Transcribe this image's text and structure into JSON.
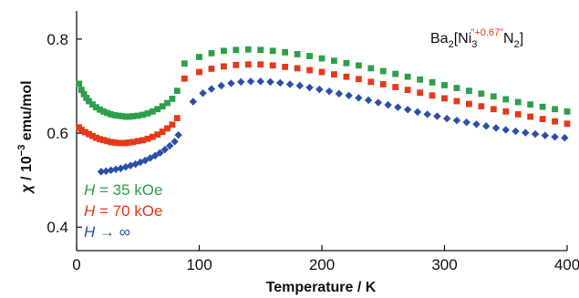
{
  "chart_data": {
    "type": "scatter",
    "xlabel": "Temperature / K",
    "ylabel_parts": {
      "chi": "χ",
      "slash": " / 10",
      "exp": "−3",
      "unit": " emu/mol"
    },
    "xlim": [
      0,
      400
    ],
    "ylim": [
      0.35,
      0.86
    ],
    "xticks": [
      0,
      100,
      200,
      300,
      400
    ],
    "yticks": [
      0.4,
      0.6,
      0.8
    ],
    "xtick_labels": [
      "0",
      "100",
      "200",
      "300",
      "400"
    ],
    "ytick_labels": [
      "0.4",
      "0.6",
      "0.8"
    ],
    "grid": false,
    "formula": {
      "base": "Ba",
      "sub1": "2",
      "open": "[Ni",
      "sub2": "3",
      "sup": "\"+0.67\"",
      "mid": "N",
      "sub3": "2",
      "close": "]"
    },
    "series": [
      {
        "name": "H = 35 kOe",
        "label_parts": {
          "var": "H",
          "rest": " = 35 kOe"
        },
        "color": "#2ca049",
        "marker": "square",
        "points": [
          [
            2,
            0.705
          ],
          [
            4,
            0.692
          ],
          [
            6,
            0.683
          ],
          [
            8,
            0.675
          ],
          [
            10,
            0.668
          ],
          [
            13,
            0.661
          ],
          [
            16,
            0.655
          ],
          [
            19,
            0.65
          ],
          [
            22,
            0.646
          ],
          [
            25,
            0.643
          ],
          [
            28,
            0.64
          ],
          [
            31,
            0.638
          ],
          [
            34,
            0.637
          ],
          [
            37,
            0.636
          ],
          [
            40,
            0.635
          ],
          [
            43,
            0.635
          ],
          [
            46,
            0.636
          ],
          [
            50,
            0.637
          ],
          [
            54,
            0.639
          ],
          [
            58,
            0.642
          ],
          [
            62,
            0.646
          ],
          [
            66,
            0.651
          ],
          [
            70,
            0.657
          ],
          [
            74,
            0.664
          ],
          [
            78,
            0.673
          ],
          [
            82,
            0.69
          ],
          [
            88,
            0.748
          ],
          [
            100,
            0.762
          ],
          [
            110,
            0.77
          ],
          [
            120,
            0.775
          ],
          [
            130,
            0.777
          ],
          [
            140,
            0.778
          ],
          [
            150,
            0.777
          ],
          [
            160,
            0.775
          ],
          [
            170,
            0.772
          ],
          [
            180,
            0.768
          ],
          [
            190,
            0.764
          ],
          [
            200,
            0.759
          ],
          [
            210,
            0.754
          ],
          [
            220,
            0.749
          ],
          [
            230,
            0.744
          ],
          [
            240,
            0.738
          ],
          [
            250,
            0.732
          ],
          [
            260,
            0.726
          ],
          [
            270,
            0.72
          ],
          [
            280,
            0.714
          ],
          [
            290,
            0.708
          ],
          [
            300,
            0.702
          ],
          [
            310,
            0.696
          ],
          [
            320,
            0.69
          ],
          [
            330,
            0.684
          ],
          [
            340,
            0.678
          ],
          [
            350,
            0.672
          ],
          [
            360,
            0.666
          ],
          [
            370,
            0.661
          ],
          [
            380,
            0.656
          ],
          [
            390,
            0.651
          ],
          [
            400,
            0.646
          ]
        ]
      },
      {
        "name": "H = 70 kOe",
        "label_parts": {
          "var": "H",
          "rest": " = 70 kOe"
        },
        "color": "#e5391c",
        "marker": "square",
        "points": [
          [
            2,
            0.612
          ],
          [
            4,
            0.607
          ],
          [
            7,
            0.602
          ],
          [
            10,
            0.598
          ],
          [
            13,
            0.594
          ],
          [
            16,
            0.59
          ],
          [
            19,
            0.587
          ],
          [
            22,
            0.585
          ],
          [
            25,
            0.583
          ],
          [
            28,
            0.581
          ],
          [
            31,
            0.58
          ],
          [
            34,
            0.579
          ],
          [
            37,
            0.579
          ],
          [
            40,
            0.579
          ],
          [
            43,
            0.58
          ],
          [
            46,
            0.581
          ],
          [
            50,
            0.583
          ],
          [
            54,
            0.585
          ],
          [
            58,
            0.588
          ],
          [
            62,
            0.592
          ],
          [
            66,
            0.597
          ],
          [
            70,
            0.603
          ],
          [
            74,
            0.61
          ],
          [
            78,
            0.618
          ],
          [
            82,
            0.632
          ],
          [
            88,
            0.716
          ],
          [
            100,
            0.73
          ],
          [
            110,
            0.737
          ],
          [
            120,
            0.742
          ],
          [
            130,
            0.745
          ],
          [
            140,
            0.746
          ],
          [
            150,
            0.746
          ],
          [
            160,
            0.744
          ],
          [
            170,
            0.741
          ],
          [
            180,
            0.738
          ],
          [
            190,
            0.734
          ],
          [
            200,
            0.73
          ],
          [
            210,
            0.725
          ],
          [
            220,
            0.72
          ],
          [
            230,
            0.715
          ],
          [
            240,
            0.709
          ],
          [
            250,
            0.704
          ],
          [
            260,
            0.698
          ],
          [
            270,
            0.692
          ],
          [
            280,
            0.686
          ],
          [
            290,
            0.68
          ],
          [
            300,
            0.674
          ],
          [
            310,
            0.668
          ],
          [
            320,
            0.662
          ],
          [
            330,
            0.657
          ],
          [
            340,
            0.651
          ],
          [
            350,
            0.646
          ],
          [
            360,
            0.64
          ],
          [
            370,
            0.635
          ],
          [
            380,
            0.63
          ],
          [
            390,
            0.625
          ],
          [
            400,
            0.62
          ]
        ]
      },
      {
        "name": "H → ∞",
        "label_parts": {
          "var": "H",
          "rest": " → ∞"
        },
        "color": "#2b4fa8",
        "marker": "diamond",
        "points": [
          [
            20,
            0.518
          ],
          [
            24,
            0.519
          ],
          [
            28,
            0.521
          ],
          [
            32,
            0.523
          ],
          [
            36,
            0.525
          ],
          [
            40,
            0.528
          ],
          [
            44,
            0.531
          ],
          [
            48,
            0.534
          ],
          [
            52,
            0.538
          ],
          [
            56,
            0.542
          ],
          [
            60,
            0.547
          ],
          [
            64,
            0.552
          ],
          [
            68,
            0.558
          ],
          [
            72,
            0.565
          ],
          [
            76,
            0.573
          ],
          [
            80,
            0.582
          ],
          [
            83,
            0.596
          ],
          [
            95,
            0.667
          ],
          [
            103,
            0.685
          ],
          [
            110,
            0.694
          ],
          [
            118,
            0.701
          ],
          [
            126,
            0.706
          ],
          [
            134,
            0.709
          ],
          [
            142,
            0.71
          ],
          [
            150,
            0.71
          ],
          [
            158,
            0.709
          ],
          [
            166,
            0.707
          ],
          [
            174,
            0.704
          ],
          [
            182,
            0.701
          ],
          [
            190,
            0.697
          ],
          [
            198,
            0.693
          ],
          [
            206,
            0.689
          ],
          [
            214,
            0.684
          ],
          [
            222,
            0.68
          ],
          [
            230,
            0.675
          ],
          [
            238,
            0.67
          ],
          [
            246,
            0.665
          ],
          [
            254,
            0.66
          ],
          [
            262,
            0.655
          ],
          [
            270,
            0.65
          ],
          [
            278,
            0.645
          ],
          [
            286,
            0.64
          ],
          [
            294,
            0.636
          ],
          [
            302,
            0.631
          ],
          [
            310,
            0.627
          ],
          [
            318,
            0.623
          ],
          [
            326,
            0.619
          ],
          [
            334,
            0.615
          ],
          [
            342,
            0.611
          ],
          [
            350,
            0.607
          ],
          [
            358,
            0.604
          ],
          [
            366,
            0.601
          ],
          [
            374,
            0.598
          ],
          [
            382,
            0.595
          ],
          [
            390,
            0.592
          ],
          [
            398,
            0.59
          ]
        ]
      }
    ]
  }
}
